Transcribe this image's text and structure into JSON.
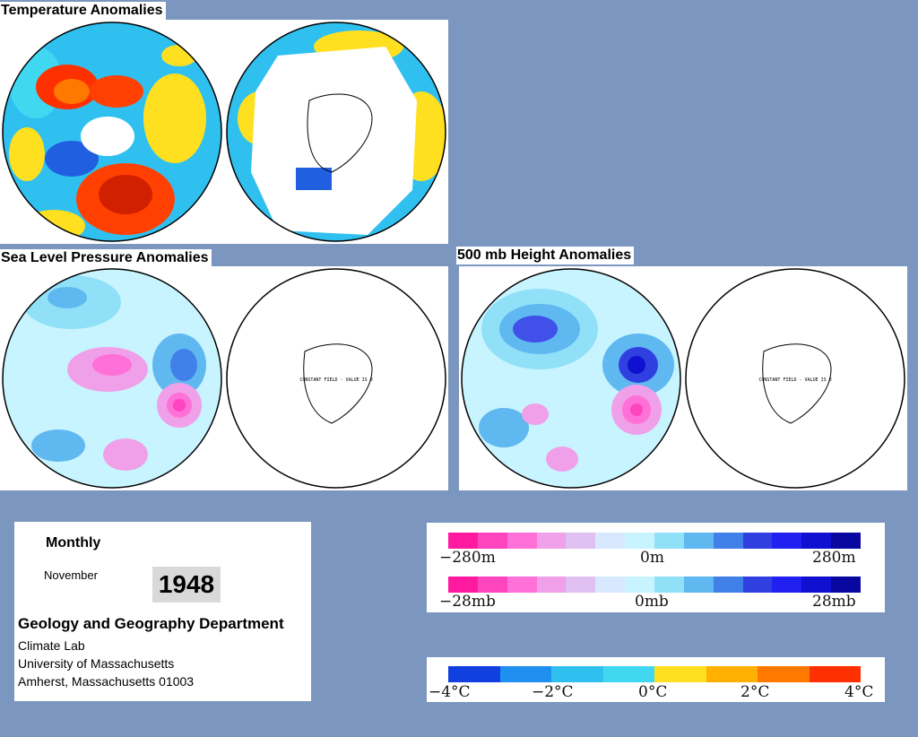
{
  "panels": {
    "temperature": {
      "title": "Temperature Anomalies"
    },
    "slp": {
      "title": "Sea Level Pressure Anomalies",
      "constant_field_note": "CONSTANT FIELD - VALUE IS 0"
    },
    "height": {
      "title": "500 mb Height Anomalies",
      "constant_field_note": "CONSTANT FIELD - VALUE IS 0"
    }
  },
  "info": {
    "period": "Monthly",
    "month": "November",
    "year": "1948",
    "department": "Geology and Geography Department",
    "lab": "Climate Lab",
    "university": "University of Massachusetts",
    "address": "Amherst, Massachusetts 01003"
  },
  "legends": {
    "height_scale": {
      "min_label": "−280m",
      "mid_label": "0m",
      "max_label": "280m"
    },
    "pressure_scale": {
      "min_label": "−28mb",
      "mid_label": "0mb",
      "max_label": "28mb"
    },
    "temperature_scale": {
      "labels": [
        "−4°C",
        "−2°C",
        "0°C",
        "2°C",
        "4°C"
      ]
    }
  },
  "colors": {
    "background": "#7b96bf",
    "anomaly_scale": [
      "#ff1aa0",
      "#ff44c0",
      "#ff70d8",
      "#f0a0e8",
      "#e0c0f0",
      "#d8e8ff",
      "#c8f4ff",
      "#90e0f8",
      "#60b8f0",
      "#4080e8",
      "#3040e0",
      "#2020f0",
      "#1010d0",
      "#0808a0"
    ],
    "temperature_scale": [
      "#1040e0",
      "#2090f0",
      "#30c0f0",
      "#40d8f0",
      "#ffe020",
      "#ffb000",
      "#ff7800",
      "#ff3000"
    ]
  }
}
